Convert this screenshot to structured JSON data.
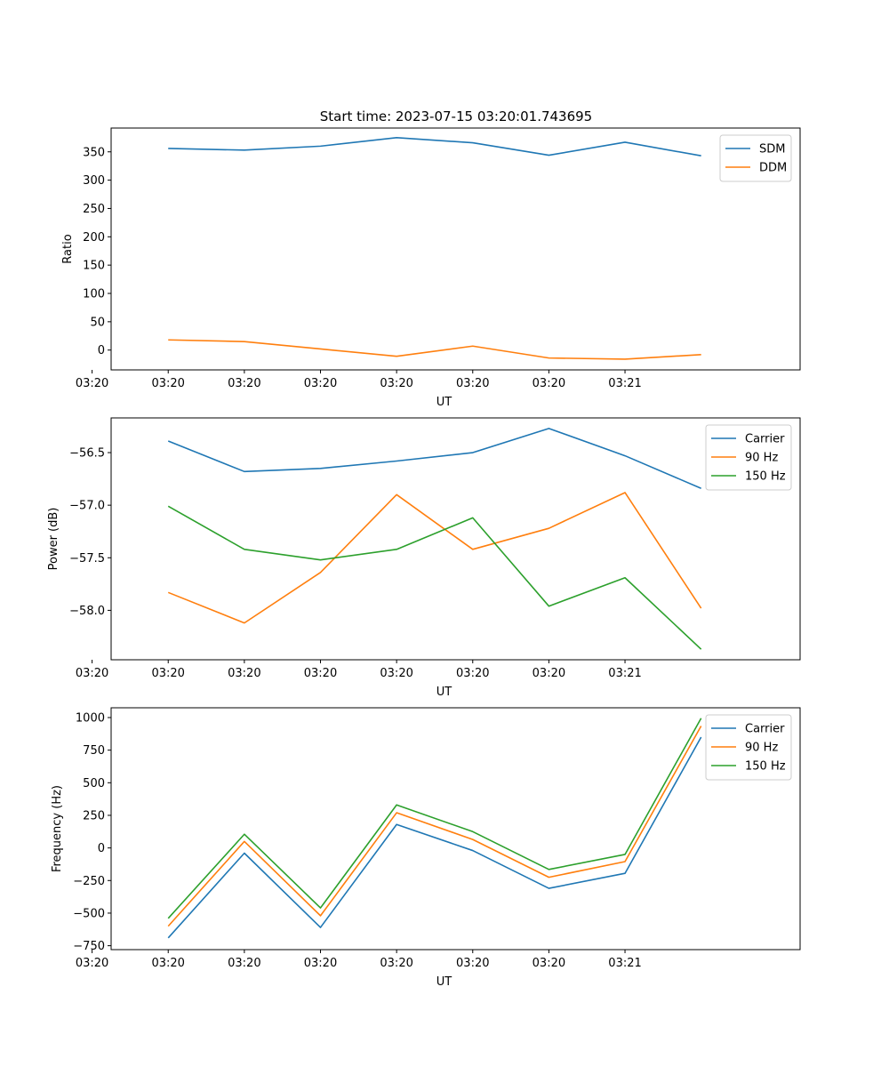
{
  "figure": {
    "title": "Start time: 2023-07-15 03:20:01.743695"
  },
  "chart_data": [
    {
      "type": "line",
      "title": "Start time: 2023-07-15 03:20:01.743695",
      "xlabel": "UT",
      "ylabel": "Ratio",
      "x_tick_labels": [
        "03:20",
        "03:20",
        "03:20",
        "03:20",
        "03:20",
        "03:20",
        "03:20",
        "03:21"
      ],
      "x_points": [
        1,
        2,
        3,
        4,
        5,
        6,
        7,
        8
      ],
      "xlim": [
        0.25,
        9.3
      ],
      "ylim": [
        -35,
        392
      ],
      "y_ticks": [
        0,
        50,
        100,
        150,
        200,
        250,
        300,
        350
      ],
      "legend_position": "top-right",
      "series": [
        {
          "name": "SDM",
          "color": "#1f77b4",
          "values": [
            356,
            353,
            360,
            375,
            366,
            344,
            367,
            343
          ]
        },
        {
          "name": "DDM",
          "color": "#ff7f0e",
          "values": [
            18,
            15,
            2,
            -11,
            7,
            -14,
            -16,
            -8
          ]
        }
      ]
    },
    {
      "type": "line",
      "title": "",
      "xlabel": "UT",
      "ylabel": "Power (dB)",
      "x_tick_labels": [
        "03:20",
        "03:20",
        "03:20",
        "03:20",
        "03:20",
        "03:20",
        "03:20",
        "03:21"
      ],
      "x_points": [
        1,
        2,
        3,
        4,
        5,
        6,
        7,
        8
      ],
      "xlim": [
        0.25,
        9.3
      ],
      "ylim": [
        -58.47,
        -56.17
      ],
      "y_ticks": [
        -58.0,
        -57.5,
        -57.0,
        -56.5
      ],
      "y_tick_labels": [
        "−58.0",
        "−57.5",
        "−57.0",
        "−56.5"
      ],
      "legend_position": "top-right",
      "series": [
        {
          "name": "Carrier",
          "color": "#1f77b4",
          "values": [
            -56.39,
            -56.68,
            -56.65,
            -56.58,
            -56.5,
            -56.27,
            -56.53,
            -56.84
          ]
        },
        {
          "name": "90 Hz",
          "color": "#ff7f0e",
          "values": [
            -57.83,
            -58.12,
            -57.64,
            -56.9,
            -57.42,
            -57.22,
            -56.88,
            -57.98
          ]
        },
        {
          "name": "150 Hz",
          "color": "#2ca02c",
          "values": [
            -57.01,
            -57.42,
            -57.52,
            -57.42,
            -57.12,
            -57.96,
            -57.69,
            -58.37
          ]
        }
      ]
    },
    {
      "type": "line",
      "title": "",
      "xlabel": "UT",
      "ylabel": "Frequency (Hz)",
      "x_tick_labels": [
        "03:20",
        "03:20",
        "03:20",
        "03:20",
        "03:20",
        "03:20",
        "03:20",
        "03:21"
      ],
      "x_points": [
        1,
        2,
        3,
        4,
        5,
        6,
        7,
        8
      ],
      "xlim": [
        0.25,
        9.3
      ],
      "ylim": [
        -780,
        1075
      ],
      "y_ticks": [
        -750,
        -500,
        -250,
        0,
        250,
        500,
        750,
        1000
      ],
      "y_tick_labels": [
        "−750",
        "−500",
        "−250",
        "0",
        "250",
        "500",
        "750",
        "1000"
      ],
      "legend_position": "top-right",
      "series": [
        {
          "name": "Carrier",
          "color": "#1f77b4",
          "values": [
            -690,
            -40,
            -610,
            180,
            -20,
            -310,
            -195,
            850
          ]
        },
        {
          "name": "90 Hz",
          "color": "#ff7f0e",
          "values": [
            -600,
            50,
            -520,
            270,
            65,
            -225,
            -105,
            935
          ]
        },
        {
          "name": "150 Hz",
          "color": "#2ca02c",
          "values": [
            -540,
            105,
            -460,
            330,
            125,
            -165,
            -50,
            995
          ]
        }
      ]
    }
  ]
}
